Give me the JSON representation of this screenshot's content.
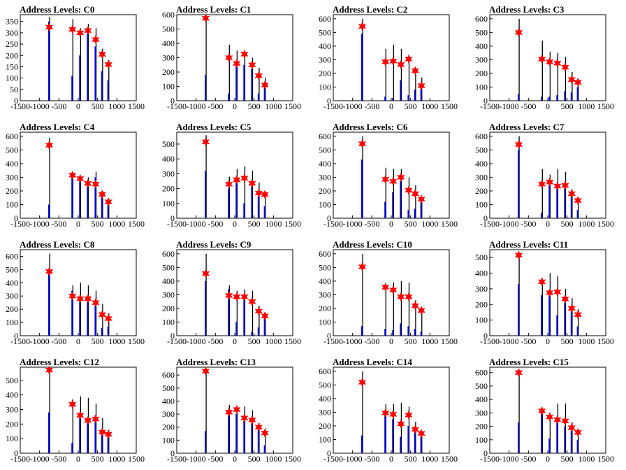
{
  "colors": {
    "black": "#000000",
    "blue": "#0000ff",
    "star": "#ff0000",
    "background": "#ffffff"
  },
  "chart_data": [
    {
      "type": "bar",
      "title": "Address Levels: C0",
      "xlim": [
        -1500,
        1500
      ],
      "ylim": [
        0,
        380
      ],
      "yticks": [
        0,
        50,
        100,
        150,
        200,
        250,
        300,
        350
      ],
      "xticks": [
        -1500,
        -1000,
        -500,
        0,
        500,
        1000,
        1500
      ],
      "peaks": [
        {
          "x": -750,
          "black": 370,
          "blue": 350,
          "star": 325
        },
        {
          "x": -150,
          "black": 360,
          "blue": 110,
          "star": 315
        },
        {
          "x": 50,
          "black": 320,
          "blue": 200,
          "star": 300
        },
        {
          "x": 250,
          "black": 340,
          "blue": 310,
          "star": 310
        },
        {
          "x": 450,
          "black": 320,
          "blue": 240,
          "star": 270
        },
        {
          "x": 620,
          "black": 230,
          "blue": 130,
          "star": 205
        },
        {
          "x": 780,
          "black": 180,
          "blue": 90,
          "star": 160
        }
      ]
    },
    {
      "type": "bar",
      "title": "Address Levels: C1",
      "xlim": [
        -1500,
        1500
      ],
      "ylim": [
        0,
        600
      ],
      "yticks": [
        0,
        100,
        200,
        300,
        400,
        500,
        600
      ],
      "xticks": [
        -1500,
        -1000,
        -500,
        0,
        500,
        1000,
        1500
      ],
      "peaks": [
        {
          "x": -750,
          "black": 600,
          "blue": 180,
          "star": 575
        },
        {
          "x": -150,
          "black": 390,
          "blue": 50,
          "star": 300
        },
        {
          "x": 50,
          "black": 350,
          "blue": 260,
          "star": 260
        },
        {
          "x": 250,
          "black": 340,
          "blue": 250,
          "star": 325
        },
        {
          "x": 450,
          "black": 300,
          "blue": 220,
          "star": 250
        },
        {
          "x": 620,
          "black": 230,
          "blue": 50,
          "star": 175
        },
        {
          "x": 780,
          "black": 160,
          "blue": 100,
          "star": 110
        }
      ]
    },
    {
      "type": "bar",
      "title": "Address Levels: C2",
      "xlim": [
        -1500,
        1500
      ],
      "ylim": [
        0,
        630
      ],
      "yticks": [
        0,
        100,
        200,
        300,
        400,
        500,
        600
      ],
      "xticks": [
        -1500,
        -1000,
        -500,
        0,
        500,
        1000,
        1500
      ],
      "peaks": [
        {
          "x": -750,
          "black": 600,
          "blue": 490,
          "star": 545
        },
        {
          "x": -150,
          "black": 380,
          "blue": 30,
          "star": 285
        },
        {
          "x": 50,
          "black": 410,
          "blue": 20,
          "star": 290
        },
        {
          "x": 250,
          "black": 380,
          "blue": 150,
          "star": 265
        },
        {
          "x": 450,
          "black": 330,
          "blue": 40,
          "star": 305
        },
        {
          "x": 620,
          "black": 240,
          "blue": 80,
          "star": 220
        },
        {
          "x": 780,
          "black": 170,
          "blue": 100,
          "star": 110
        }
      ]
    },
    {
      "type": "bar",
      "title": "Address Levels: C3",
      "xlim": [
        -1500,
        1500
      ],
      "ylim": [
        0,
        630
      ],
      "yticks": [
        0,
        100,
        200,
        300,
        400,
        500,
        600
      ],
      "xticks": [
        -1500,
        -1000,
        -500,
        0,
        500,
        1000,
        1500
      ],
      "peaks": [
        {
          "x": -750,
          "black": 600,
          "blue": 50,
          "star": 500
        },
        {
          "x": -150,
          "black": 440,
          "blue": 30,
          "star": 305
        },
        {
          "x": 50,
          "black": 360,
          "blue": 30,
          "star": 285
        },
        {
          "x": 250,
          "black": 350,
          "blue": 40,
          "star": 275
        },
        {
          "x": 450,
          "black": 320,
          "blue": 70,
          "star": 245
        },
        {
          "x": 620,
          "black": 210,
          "blue": 60,
          "star": 155
        },
        {
          "x": 780,
          "black": 160,
          "blue": 100,
          "star": 135
        }
      ]
    },
    {
      "type": "bar",
      "title": "Address Levels: C4",
      "xlim": [
        -1500,
        1500
      ],
      "ylim": [
        0,
        630
      ],
      "yticks": [
        0,
        100,
        200,
        300,
        400,
        500,
        600
      ],
      "xticks": [
        -1500,
        -1000,
        -500,
        0,
        500,
        1000,
        1500
      ],
      "peaks": [
        {
          "x": -750,
          "black": 590,
          "blue": 100,
          "star": 535
        },
        {
          "x": -150,
          "black": 330,
          "blue": 320,
          "star": 315
        },
        {
          "x": 50,
          "black": 310,
          "blue": 300,
          "star": 290
        },
        {
          "x": 250,
          "black": 300,
          "blue": 270,
          "star": 255
        },
        {
          "x": 450,
          "black": 340,
          "blue": 300,
          "star": 250
        },
        {
          "x": 620,
          "black": 200,
          "blue": 180,
          "star": 175
        },
        {
          "x": 780,
          "black": 130,
          "blue": 110,
          "star": 120
        }
      ]
    },
    {
      "type": "bar",
      "title": "Address Levels: C5",
      "xlim": [
        -1500,
        1500
      ],
      "ylim": [
        0,
        580
      ],
      "yticks": [
        0,
        100,
        200,
        300,
        400,
        500
      ],
      "xticks": [
        -1500,
        -1000,
        -500,
        0,
        500,
        1000,
        1500
      ],
      "peaks": [
        {
          "x": -750,
          "black": 560,
          "blue": 320,
          "star": 515
        },
        {
          "x": -150,
          "black": 280,
          "blue": 200,
          "star": 230
        },
        {
          "x": 50,
          "black": 330,
          "blue": 250,
          "star": 260
        },
        {
          "x": 250,
          "black": 350,
          "blue": 100,
          "star": 270
        },
        {
          "x": 450,
          "black": 320,
          "blue": 230,
          "star": 235
        },
        {
          "x": 620,
          "black": 240,
          "blue": 150,
          "star": 170
        },
        {
          "x": 780,
          "black": 170,
          "blue": 80,
          "star": 160
        }
      ]
    },
    {
      "type": "bar",
      "title": "Address Levels: C6",
      "xlim": [
        -1500,
        1500
      ],
      "ylim": [
        0,
        630
      ],
      "yticks": [
        0,
        100,
        200,
        300,
        400,
        500,
        600
      ],
      "xticks": [
        -1500,
        -1000,
        -500,
        0,
        500,
        1000,
        1500
      ],
      "peaks": [
        {
          "x": -750,
          "black": 600,
          "blue": 430,
          "star": 545
        },
        {
          "x": -150,
          "black": 370,
          "blue": 120,
          "star": 285
        },
        {
          "x": 50,
          "black": 360,
          "blue": 190,
          "star": 270
        },
        {
          "x": 250,
          "black": 360,
          "blue": 270,
          "star": 300
        },
        {
          "x": 450,
          "black": 300,
          "blue": 60,
          "star": 205
        },
        {
          "x": 620,
          "black": 240,
          "blue": 70,
          "star": 180
        },
        {
          "x": 780,
          "black": 160,
          "blue": 120,
          "star": 140
        }
      ]
    },
    {
      "type": "bar",
      "title": "Address Levels: C7",
      "xlim": [
        -1500,
        1500
      ],
      "ylim": [
        0,
        630
      ],
      "yticks": [
        0,
        100,
        200,
        300,
        400,
        500,
        600
      ],
      "xticks": [
        -1500,
        -1000,
        -500,
        0,
        500,
        1000,
        1500
      ],
      "peaks": [
        {
          "x": -750,
          "black": 600,
          "blue": 500,
          "star": 540
        },
        {
          "x": -150,
          "black": 360,
          "blue": 40,
          "star": 250
        },
        {
          "x": 50,
          "black": 320,
          "blue": 270,
          "star": 265
        },
        {
          "x": 250,
          "black": 360,
          "blue": 250,
          "star": 235
        },
        {
          "x": 450,
          "black": 340,
          "blue": 240,
          "star": 240
        },
        {
          "x": 620,
          "black": 210,
          "blue": 170,
          "star": 180
        },
        {
          "x": 780,
          "black": 150,
          "blue": 60,
          "star": 130
        }
      ]
    },
    {
      "type": "bar",
      "title": "Address Levels: C8",
      "xlim": [
        -1500,
        1500
      ],
      "ylim": [
        0,
        650
      ],
      "yticks": [
        0,
        100,
        200,
        300,
        400,
        500,
        600
      ],
      "xticks": [
        -1500,
        -1000,
        -500,
        0,
        500,
        1000,
        1500
      ],
      "peaks": [
        {
          "x": -750,
          "black": 620,
          "blue": 480,
          "star": 485
        },
        {
          "x": -150,
          "black": 380,
          "blue": 340,
          "star": 300
        },
        {
          "x": 50,
          "black": 400,
          "blue": 290,
          "star": 280
        },
        {
          "x": 250,
          "black": 380,
          "blue": 260,
          "star": 280
        },
        {
          "x": 450,
          "black": 340,
          "blue": 240,
          "star": 250
        },
        {
          "x": 620,
          "black": 240,
          "blue": 60,
          "star": 160
        },
        {
          "x": 780,
          "black": 170,
          "blue": 70,
          "star": 130
        }
      ]
    },
    {
      "type": "bar",
      "title": "Address Levels: C9",
      "xlim": [
        -1500,
        1500
      ],
      "ylim": [
        0,
        630
      ],
      "yticks": [
        0,
        100,
        200,
        300,
        400,
        500,
        600
      ],
      "xticks": [
        -1500,
        -1000,
        -500,
        0,
        500,
        1000,
        1500
      ],
      "peaks": [
        {
          "x": -750,
          "black": 600,
          "blue": 400,
          "star": 455
        },
        {
          "x": -150,
          "black": 370,
          "blue": 340,
          "star": 295
        },
        {
          "x": 50,
          "black": 330,
          "blue": 100,
          "star": 285
        },
        {
          "x": 250,
          "black": 340,
          "blue": 300,
          "star": 285
        },
        {
          "x": 450,
          "black": 330,
          "blue": 30,
          "star": 250
        },
        {
          "x": 620,
          "black": 220,
          "blue": 60,
          "star": 180
        },
        {
          "x": 780,
          "black": 170,
          "blue": 130,
          "star": 145
        }
      ]
    },
    {
      "type": "bar",
      "title": "Address Levels: C10",
      "xlim": [
        -1500,
        1500
      ],
      "ylim": [
        0,
        630
      ],
      "yticks": [
        0,
        100,
        200,
        300,
        400,
        500,
        600
      ],
      "xticks": [
        -1500,
        -1000,
        -500,
        0,
        500,
        1000,
        1500
      ],
      "peaks": [
        {
          "x": -750,
          "black": 600,
          "blue": 70,
          "star": 505
        },
        {
          "x": -150,
          "black": 360,
          "blue": 50,
          "star": 355
        },
        {
          "x": 50,
          "black": 390,
          "blue": 40,
          "star": 335
        },
        {
          "x": 250,
          "black": 400,
          "blue": 90,
          "star": 285
        },
        {
          "x": 450,
          "black": 390,
          "blue": 70,
          "star": 285
        },
        {
          "x": 620,
          "black": 260,
          "blue": 50,
          "star": 220
        },
        {
          "x": 780,
          "black": 200,
          "blue": 30,
          "star": 185
        }
      ]
    },
    {
      "type": "bar",
      "title": "Address Levels: C11",
      "xlim": [
        -1500,
        1500
      ],
      "ylim": [
        0,
        550
      ],
      "yticks": [
        0,
        100,
        200,
        300,
        400,
        500
      ],
      "xticks": [
        -1500,
        -1000,
        -500,
        0,
        500,
        1000,
        1500
      ],
      "peaks": [
        {
          "x": -750,
          "black": 520,
          "blue": 330,
          "star": 515
        },
        {
          "x": -150,
          "black": 350,
          "blue": 260,
          "star": 345
        },
        {
          "x": 50,
          "black": 400,
          "blue": 270,
          "star": 275
        },
        {
          "x": 250,
          "black": 380,
          "blue": 130,
          "star": 280
        },
        {
          "x": 450,
          "black": 300,
          "blue": 210,
          "star": 235
        },
        {
          "x": 620,
          "black": 240,
          "blue": 160,
          "star": 175
        },
        {
          "x": 780,
          "black": 170,
          "blue": 60,
          "star": 135
        }
      ]
    },
    {
      "type": "bar",
      "title": "Address Levels: C12",
      "xlim": [
        -1500,
        1500
      ],
      "ylim": [
        0,
        590
      ],
      "yticks": [
        0,
        100,
        200,
        300,
        400,
        500
      ],
      "xticks": [
        -1500,
        -1000,
        -500,
        0,
        500,
        1000,
        1500
      ],
      "peaks": [
        {
          "x": -750,
          "black": 580,
          "blue": 280,
          "star": 570
        },
        {
          "x": -150,
          "black": 370,
          "blue": 70,
          "star": 335
        },
        {
          "x": 50,
          "black": 390,
          "blue": 260,
          "star": 260
        },
        {
          "x": 250,
          "black": 380,
          "blue": 230,
          "star": 225
        },
        {
          "x": 450,
          "black": 340,
          "blue": 260,
          "star": 235
        },
        {
          "x": 620,
          "black": 240,
          "blue": 140,
          "star": 145
        },
        {
          "x": 780,
          "black": 160,
          "blue": 120,
          "star": 130
        }
      ]
    },
    {
      "type": "bar",
      "title": "Address Levels: C13",
      "xlim": [
        -1500,
        1500
      ],
      "ylim": [
        0,
        660
      ],
      "yticks": [
        0,
        100,
        200,
        300,
        400,
        500,
        600
      ],
      "xticks": [
        -1500,
        -1000,
        -500,
        0,
        500,
        1000,
        1500
      ],
      "peaks": [
        {
          "x": -750,
          "black": 640,
          "blue": 170,
          "star": 630
        },
        {
          "x": -150,
          "black": 370,
          "blue": 290,
          "star": 315
        },
        {
          "x": 50,
          "black": 360,
          "blue": 300,
          "star": 335
        },
        {
          "x": 250,
          "black": 360,
          "blue": 250,
          "star": 270
        },
        {
          "x": 450,
          "black": 330,
          "blue": 230,
          "star": 255
        },
        {
          "x": 620,
          "black": 230,
          "blue": 180,
          "star": 200
        },
        {
          "x": 780,
          "black": 190,
          "blue": 60,
          "star": 155
        }
      ]
    },
    {
      "type": "bar",
      "title": "Address Levels: C14",
      "xlim": [
        -1500,
        1500
      ],
      "ylim": [
        0,
        630
      ],
      "yticks": [
        0,
        100,
        200,
        300,
        400,
        500,
        600
      ],
      "xticks": [
        -1500,
        -1000,
        -500,
        0,
        500,
        1000,
        1500
      ],
      "peaks": [
        {
          "x": -750,
          "black": 600,
          "blue": 130,
          "star": 520
        },
        {
          "x": -150,
          "black": 360,
          "blue": 280,
          "star": 295
        },
        {
          "x": 50,
          "black": 360,
          "blue": 250,
          "star": 285
        },
        {
          "x": 250,
          "black": 370,
          "blue": 120,
          "star": 215
        },
        {
          "x": 450,
          "black": 340,
          "blue": 200,
          "star": 280
        },
        {
          "x": 620,
          "black": 230,
          "blue": 180,
          "star": 175
        },
        {
          "x": 780,
          "black": 150,
          "blue": 120,
          "star": 145
        }
      ]
    },
    {
      "type": "bar",
      "title": "Address Levels: C15",
      "xlim": [
        -1500,
        1500
      ],
      "ylim": [
        0,
        640
      ],
      "yticks": [
        0,
        100,
        200,
        300,
        400,
        500,
        600
      ],
      "xticks": [
        -1500,
        -1000,
        -500,
        0,
        500,
        1000,
        1500
      ],
      "peaks": [
        {
          "x": -750,
          "black": 620,
          "blue": 230,
          "star": 600
        },
        {
          "x": -150,
          "black": 330,
          "blue": 310,
          "star": 315
        },
        {
          "x": 50,
          "black": 300,
          "blue": 110,
          "star": 270
        },
        {
          "x": 250,
          "black": 370,
          "blue": 250,
          "star": 250
        },
        {
          "x": 450,
          "black": 370,
          "blue": 200,
          "star": 240
        },
        {
          "x": 620,
          "black": 230,
          "blue": 200,
          "star": 190
        },
        {
          "x": 780,
          "black": 170,
          "blue": 100,
          "star": 155
        }
      ]
    }
  ]
}
